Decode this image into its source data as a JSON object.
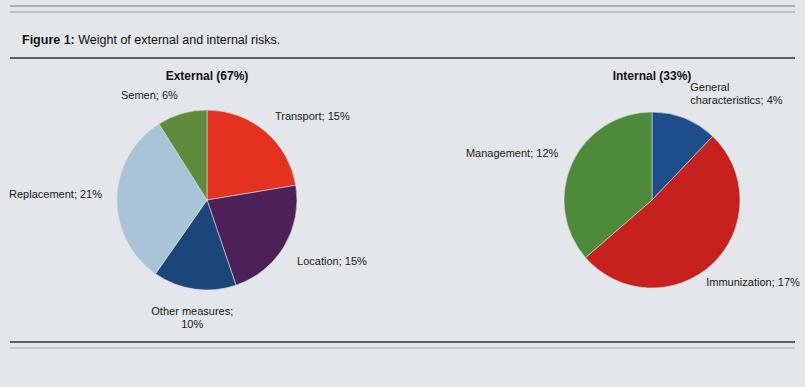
{
  "figure": {
    "title": "Figure 1: Weight of external and internal risks."
  },
  "chart_data": [
    {
      "type": "pie",
      "title": "External (67%)",
      "values": [
        15,
        15,
        10,
        21,
        6
      ],
      "value_labels": [
        "Transport; 15%",
        "Location; 15%",
        "Other measures; 10%",
        "Replacement; 21%",
        "Semen; 6%"
      ],
      "colors": [
        "#e3321f",
        "#4b2158",
        "#1b4679",
        "#a8c4d6",
        "#5e8c3c"
      ],
      "data_labels": true
    },
    {
      "type": "pie",
      "title": "Internal (33%)",
      "values": [
        4,
        17,
        12
      ],
      "value_labels": [
        "General characteristics; 4%",
        "Immunization; 17%",
        "Management; 12%"
      ],
      "colors": [
        "#1d4d8a",
        "#c6211f",
        "#4d8a3b"
      ],
      "data_labels": true
    }
  ]
}
